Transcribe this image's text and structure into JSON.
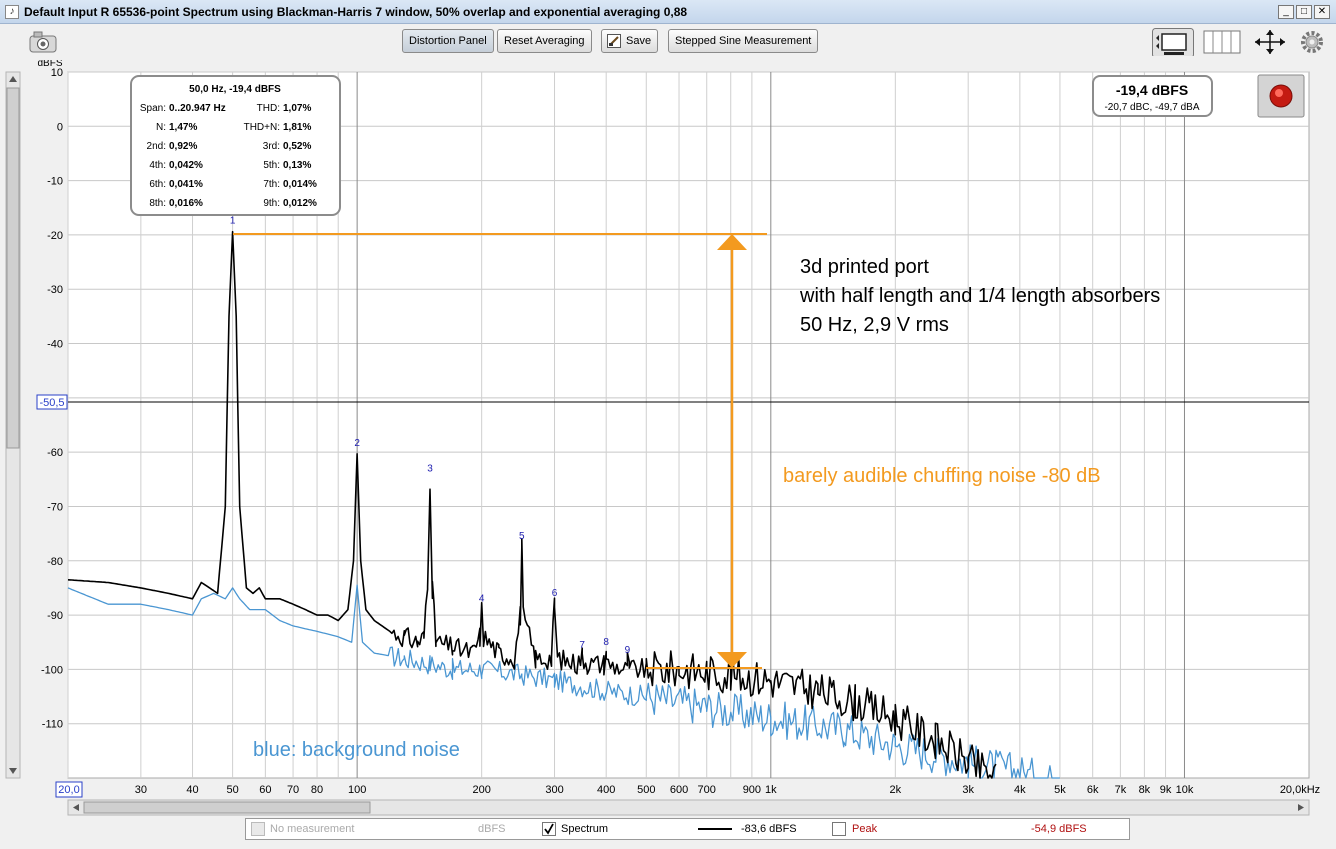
{
  "window": {
    "title": "Default Input R 65536-point Spectrum using Blackman-Harris 7 window, 50% overlap and exponential averaging 0,88"
  },
  "toolbar": {
    "distortion_label": "Distortion Panel",
    "reset_label": "Reset Averaging",
    "save_label": "Save",
    "stepped_label": "Stepped Sine Measurement"
  },
  "distortion_panel": {
    "header": "50,0 Hz, -19,4 dBFS",
    "rows": [
      [
        "Span:",
        "0..20.947 Hz",
        "THD:",
        "1,07%"
      ],
      [
        "N:",
        "1,47%",
        "THD+N:",
        "1,81%"
      ],
      [
        "2nd:",
        "0,92%",
        "3rd:",
        "0,52%"
      ],
      [
        "4th:",
        "0,042%",
        "5th:",
        "0,13%"
      ],
      [
        "6th:",
        "0,041%",
        "7th:",
        "0,014%"
      ],
      [
        "8th:",
        "0,016%",
        "9th:",
        "0,012%"
      ]
    ]
  },
  "level_meter": {
    "value": "-19,4 dBFS",
    "sub": "-20,7 dBC, -49,7 dBA"
  },
  "annotations": {
    "port_lines": [
      "3d printed port",
      "with half length and 1/4 length absorbers",
      "50 Hz, 2,9 V rms"
    ],
    "chuffing": "barely audible chuffing noise -80 dB",
    "background": "blue: background noise"
  },
  "legend": {
    "no_measurement": "No measurement",
    "dbfs_unit": "dBFS",
    "spectrum_label": "Spectrum",
    "spectrum_value": "-83,6 dBFS",
    "peak_label": "Peak",
    "peak_value": "-54,9 dBFS"
  },
  "cursor": {
    "y_value": "-50,5"
  },
  "chart_data": {
    "type": "line",
    "ylabel": "dBFS",
    "ylim": [
      -120,
      10
    ],
    "xlim": [
      20,
      20000
    ],
    "x_scale": "log",
    "grid": true,
    "y_ticks": [
      "10",
      "0",
      "-10",
      "-20",
      "-30",
      "-40",
      "-60",
      "-70",
      "-80",
      "-90",
      "-100",
      "-110"
    ],
    "x_ticks": [
      {
        "v": 30,
        "t": "30"
      },
      {
        "v": 40,
        "t": "40"
      },
      {
        "v": 50,
        "t": "50"
      },
      {
        "v": 60,
        "t": "60"
      },
      {
        "v": 70,
        "t": "70"
      },
      {
        "v": 80,
        "t": "80"
      },
      {
        "v": 100,
        "t": "100"
      },
      {
        "v": 200,
        "t": "200"
      },
      {
        "v": 300,
        "t": "300"
      },
      {
        "v": 400,
        "t": "400"
      },
      {
        "v": 500,
        "t": "500"
      },
      {
        "v": 600,
        "t": "600"
      },
      {
        "v": 700,
        "t": "700"
      },
      {
        "v": 900,
        "t": "900"
      },
      {
        "v": 1000,
        "t": "1k"
      },
      {
        "v": 2000,
        "t": "2k"
      },
      {
        "v": 3000,
        "t": "3k"
      },
      {
        "v": 4000,
        "t": "4k"
      },
      {
        "v": 5000,
        "t": "5k"
      },
      {
        "v": 6000,
        "t": "6k"
      },
      {
        "v": 7000,
        "t": "7k"
      },
      {
        "v": 8000,
        "t": "8k"
      },
      {
        "v": 9000,
        "t": "9k"
      },
      {
        "v": 10000,
        "t": "10k"
      }
    ],
    "x_min_label": "20,0",
    "x_max_label": "20,0kHz",
    "harmonic_markers": [
      {
        "n": "1",
        "x": 50,
        "y": -19.4
      },
      {
        "n": "2",
        "x": 100,
        "y": -60.3
      },
      {
        "n": "3",
        "x": 150,
        "y": -65
      },
      {
        "n": "4",
        "x": 200,
        "y": -89
      },
      {
        "n": "5",
        "x": 250,
        "y": -77.5
      },
      {
        "n": "6",
        "x": 300,
        "y": -88
      },
      {
        "n": "7",
        "x": 350,
        "y": -97.5
      },
      {
        "n": "8",
        "x": 400,
        "y": -97
      },
      {
        "n": "9",
        "x": 450,
        "y": -98.5
      }
    ],
    "series": [
      {
        "name": "Spectrum",
        "color": "#000000",
        "points": [
          [
            20,
            -83.5
          ],
          [
            25,
            -84
          ],
          [
            30,
            -85
          ],
          [
            35,
            -86
          ],
          [
            40,
            -87
          ],
          [
            42,
            -84
          ],
          [
            44,
            -85
          ],
          [
            46,
            -86
          ],
          [
            48,
            -70
          ],
          [
            49,
            -35
          ],
          [
            50,
            -19.4
          ],
          [
            51,
            -35
          ],
          [
            52,
            -70
          ],
          [
            54,
            -85
          ],
          [
            56,
            -86
          ],
          [
            58,
            -85
          ],
          [
            60,
            -87
          ],
          [
            65,
            -87
          ],
          [
            70,
            -88
          ],
          [
            75,
            -89
          ],
          [
            80,
            -90
          ],
          [
            85,
            -90
          ],
          [
            90,
            -91
          ],
          [
            95,
            -89
          ],
          [
            98,
            -80
          ],
          [
            100,
            -60.3
          ],
          [
            102,
            -80
          ],
          [
            105,
            -89
          ],
          [
            110,
            -91
          ],
          [
            120,
            -93
          ],
          [
            130,
            -94
          ],
          [
            140,
            -95
          ],
          [
            145,
            -94
          ],
          [
            148,
            -85
          ],
          [
            150,
            -65
          ],
          [
            152,
            -85
          ],
          [
            155,
            -95
          ],
          [
            170,
            -96
          ],
          [
            190,
            -97
          ],
          [
            198,
            -94
          ],
          [
            200,
            -89
          ],
          [
            202,
            -94
          ],
          [
            220,
            -97
          ],
          [
            240,
            -98
          ],
          [
            248,
            -90
          ],
          [
            250,
            -77.5
          ],
          [
            252,
            -90
          ],
          [
            270,
            -98
          ],
          [
            295,
            -98
          ],
          [
            300,
            -88
          ],
          [
            305,
            -98
          ],
          [
            340,
            -99
          ],
          [
            350,
            -97.5
          ],
          [
            360,
            -99
          ],
          [
            395,
            -99
          ],
          [
            400,
            -97
          ],
          [
            405,
            -99
          ],
          [
            445,
            -100
          ],
          [
            450,
            -98.5
          ],
          [
            455,
            -100
          ],
          [
            500,
            -100
          ],
          [
            600,
            -100
          ],
          [
            700,
            -100.5
          ],
          [
            800,
            -101
          ],
          [
            1000,
            -102
          ],
          [
            1300,
            -104
          ],
          [
            1600,
            -106
          ],
          [
            2000,
            -109
          ],
          [
            2500,
            -113
          ],
          [
            3000,
            -117
          ],
          [
            3500,
            -120
          ]
        ]
      },
      {
        "name": "background noise",
        "color": "#4a96d2",
        "points": [
          [
            20,
            -85
          ],
          [
            25,
            -88
          ],
          [
            30,
            -88
          ],
          [
            35,
            -89
          ],
          [
            40,
            -90
          ],
          [
            42,
            -87
          ],
          [
            45,
            -86
          ],
          [
            48,
            -87
          ],
          [
            50,
            -85
          ],
          [
            52,
            -87
          ],
          [
            55,
            -89
          ],
          [
            60,
            -89
          ],
          [
            65,
            -91
          ],
          [
            70,
            -92
          ],
          [
            80,
            -93
          ],
          [
            90,
            -94
          ],
          [
            97,
            -95
          ],
          [
            100,
            -84.5
          ],
          [
            103,
            -95
          ],
          [
            110,
            -97
          ],
          [
            130,
            -98
          ],
          [
            150,
            -99
          ],
          [
            170,
            -100
          ],
          [
            200,
            -100
          ],
          [
            250,
            -101
          ],
          [
            300,
            -102
          ],
          [
            400,
            -104
          ],
          [
            500,
            -105
          ],
          [
            700,
            -107
          ],
          [
            1000,
            -109
          ],
          [
            1500,
            -111
          ],
          [
            2000,
            -114
          ],
          [
            3000,
            -117
          ],
          [
            4000,
            -119
          ],
          [
            5000,
            -121
          ]
        ]
      }
    ]
  }
}
